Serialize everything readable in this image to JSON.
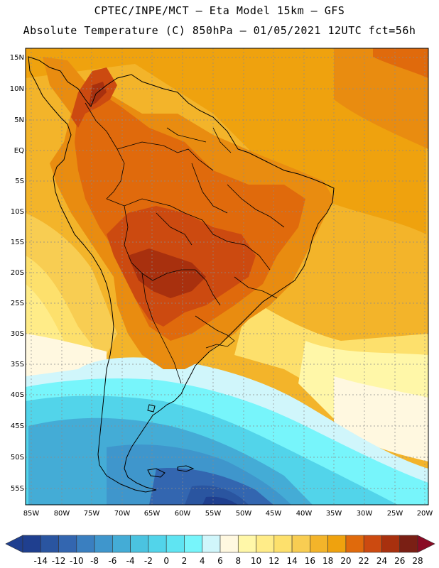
{
  "header": {
    "line1": "CPTEC/INPE/MCT —  Eta Model 15km — GFS",
    "line2": "Absolute Temperature (C) 850hPa — 01/05/2021 12UTC fct=56h"
  },
  "map": {
    "lat_labels": [
      "15N",
      "10N",
      "5N",
      "EQ",
      "5S",
      "10S",
      "15S",
      "20S",
      "25S",
      "30S",
      "35S",
      "40S",
      "45S",
      "50S",
      "55S"
    ],
    "lon_labels": [
      "85W",
      "80W",
      "75W",
      "70W",
      "65W",
      "60W",
      "55W",
      "50W",
      "45W",
      "40W",
      "35W",
      "30W",
      "25W",
      "20W"
    ]
  },
  "colorbar": {
    "labels": [
      "-14",
      "-12",
      "-10",
      "-8",
      "-6",
      "-4",
      "-2",
      "0",
      "2",
      "4",
      "6",
      "8",
      "10",
      "12",
      "14",
      "16",
      "18",
      "20",
      "22",
      "24",
      "26",
      "28"
    ],
    "colors": [
      "#1f3f8f",
      "#2a55a0",
      "#3366b0",
      "#3a7fc0",
      "#3f96cc",
      "#44acd6",
      "#4bc3e0",
      "#52d4ea",
      "#5fe4f2",
      "#77f5fb",
      "#d0f6fb",
      "#fff8e0",
      "#fff7a8",
      "#ffec88",
      "#fde06c",
      "#f8cd52",
      "#f3b42a",
      "#efa20e",
      "#e06a0c",
      "#cc4a10",
      "#a8300e",
      "#7a1f14",
      "#8a0b24"
    ]
  }
}
